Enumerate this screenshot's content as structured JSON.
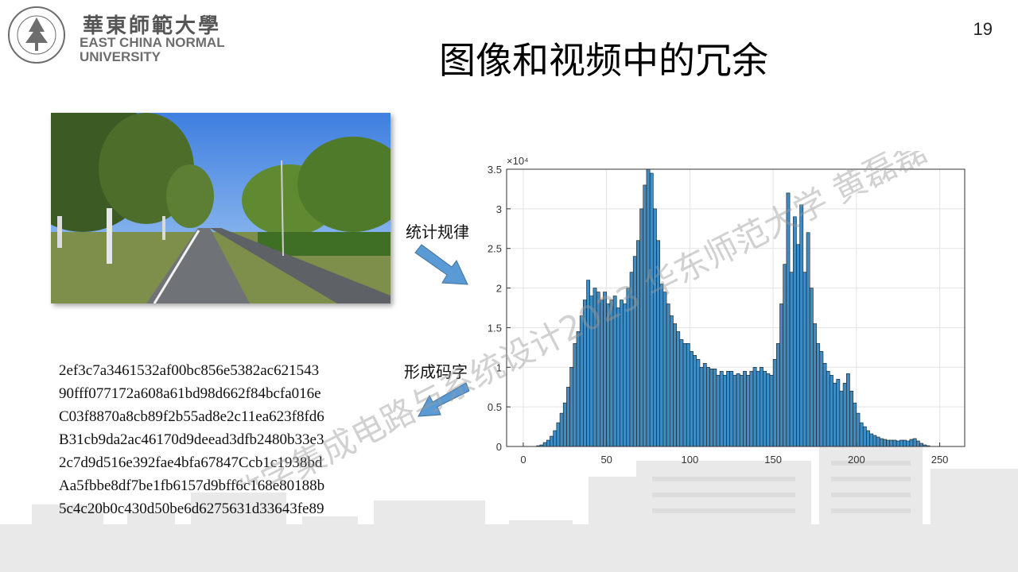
{
  "logo": {
    "chinese_name": "華東師範大學",
    "english_line1": "EAST CHINA NORMAL",
    "english_line2": "UNIVERSITY",
    "seal_text": "EAST CHINA NORMAL UNIVERSITY"
  },
  "page_number": "19",
  "title": "图像和视频中的冗余",
  "labels": {
    "statistics": "统计规律",
    "encode": "形成码字"
  },
  "codewords": [
    "2ef3c7a3461532af00bc856e5382ac621543",
    "90fff077172a608a61bd98d662f84bcfa016e",
    "C03f8870a8cb89f2b55ad8e2c11ea623f8fd6",
    "B31cb9da2ac46170d9deead3dfb2480b33e3",
    "2c7d9d516e392fae4bfa67847Ccb1c1938bd",
    "Aa5fbbe8df7be1fb6157d9bff6c168e80188b",
    "5c4c20b0c430d50be6d6275631d33643fe89"
  ],
  "watermark": "数字集成电路与系统设计2023 华东师范大学 黄磊磊",
  "colors": {
    "bar_fill": "#3d8cc4",
    "bar_stroke": "#1b1b1b",
    "arrow_fill": "#5b9bd5",
    "arrow_stroke": "#41719c"
  },
  "chart_data": {
    "type": "bar",
    "title": "",
    "xlabel": "",
    "ylabel": "",
    "y_scale_label": "×10⁴",
    "xlim": [
      -10,
      265
    ],
    "ylim": [
      0,
      3.5
    ],
    "x_ticks": [
      0,
      50,
      100,
      150,
      200,
      250
    ],
    "x_tick_labels": [
      "0",
      "50",
      "100",
      "150",
      "200",
      "250"
    ],
    "y_ticks": [
      0,
      0.5,
      1,
      1.5,
      2,
      2.5,
      3,
      3.5
    ],
    "y_tick_labels": [
      "0",
      "0.5",
      "1",
      "1.5",
      "2",
      "2.5",
      "3",
      "3.5"
    ],
    "grid": true,
    "x_start": 0,
    "bin_width": 2,
    "values": [
      0,
      0,
      0,
      0,
      0.01,
      0.02,
      0.05,
      0.08,
      0.13,
      0.2,
      0.3,
      0.42,
      0.55,
      0.75,
      1.0,
      1.3,
      1.45,
      1.65,
      1.85,
      2.1,
      1.9,
      2.0,
      1.95,
      1.85,
      1.95,
      1.8,
      1.85,
      1.9,
      1.75,
      1.85,
      1.8,
      2.0,
      2.2,
      2.4,
      2.6,
      3.0,
      3.3,
      3.5,
      3.45,
      3.0,
      2.6,
      2.05,
      1.95,
      1.8,
      1.65,
      1.55,
      1.45,
      1.35,
      1.3,
      1.3,
      1.2,
      1.15,
      1.1,
      1.0,
      1.05,
      1.0,
      0.98,
      0.98,
      0.9,
      0.95,
      0.9,
      0.95,
      0.95,
      0.9,
      0.92,
      0.9,
      0.95,
      0.9,
      0.95,
      1.0,
      0.95,
      1.0,
      0.95,
      0.92,
      0.9,
      1.1,
      1.3,
      1.8,
      2.3,
      3.2,
      2.2,
      2.9,
      2.55,
      3.05,
      2.2,
      2.7,
      2.0,
      1.55,
      1.3,
      1.2,
      1.05,
      0.95,
      0.9,
      0.8,
      0.85,
      0.7,
      0.8,
      0.92,
      0.7,
      0.55,
      0.42,
      0.3,
      0.25,
      0.2,
      0.16,
      0.14,
      0.12,
      0.1,
      0.09,
      0.08,
      0.08,
      0.08,
      0.07,
      0.08,
      0.08,
      0.07,
      0.09,
      0.1,
      0.07,
      0.04,
      0.02,
      0.01,
      0,
      0,
      0,
      0,
      0,
      0
    ]
  }
}
